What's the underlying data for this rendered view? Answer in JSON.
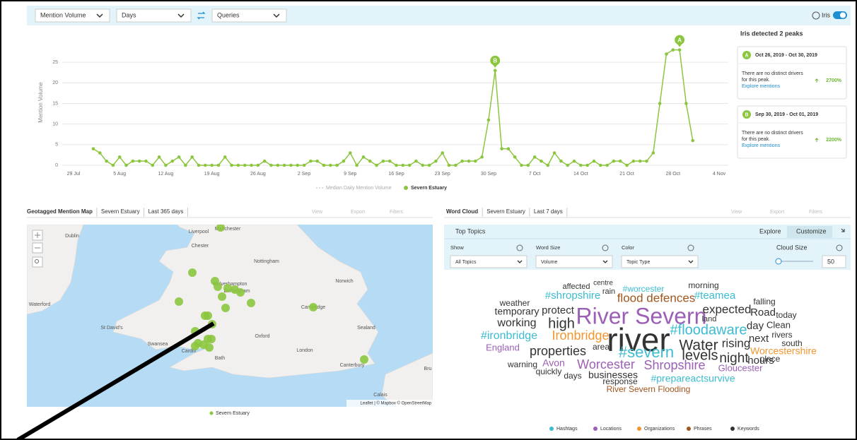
{
  "toolbar": {
    "metric": "Mention Volume",
    "interval": "Days",
    "group": "Queries",
    "iris": "Iris"
  },
  "chart_data": {
    "type": "line",
    "y_label": "Mention Volume",
    "categories": [
      "29 Jul",
      null,
      null,
      null,
      null,
      null,
      null,
      "5 Aug",
      null,
      null,
      null,
      null,
      null,
      null,
      "12 Aug",
      null,
      null,
      null,
      null,
      null,
      null,
      "19 Aug",
      null,
      null,
      null,
      null,
      null,
      null,
      "26 Aug",
      null,
      null,
      null,
      null,
      null,
      null,
      "2 Sep",
      null,
      null,
      null,
      null,
      null,
      null,
      "9 Sep",
      null,
      null,
      null,
      null,
      null,
      null,
      "16 Sep",
      null,
      null,
      null,
      null,
      null,
      null,
      "23 Sep",
      null,
      null,
      null,
      null,
      null,
      null,
      "30 Sep",
      null,
      null,
      null,
      null,
      null,
      null,
      "7 Oct",
      null,
      null,
      null,
      null,
      null,
      null,
      "14 Oct",
      null,
      null,
      null,
      null,
      null,
      null,
      "21 Oct",
      null,
      null,
      null,
      null,
      null,
      null,
      "28 Oct",
      null,
      null,
      null,
      null,
      null,
      null,
      "4 Nov"
    ],
    "series": [
      {
        "name": "Severn Estuary",
        "color": "#8cc63f",
        "values": [
          null,
          null,
          null,
          4,
          3,
          1,
          0,
          2,
          0,
          1,
          1,
          1,
          0,
          2,
          0,
          1,
          2,
          0,
          2,
          0,
          0,
          0,
          0,
          2,
          0,
          0,
          0,
          0,
          0,
          1,
          0,
          0,
          0,
          0,
          0,
          0,
          1,
          1,
          0,
          0,
          0,
          1,
          3,
          0,
          2,
          1,
          0,
          1,
          1,
          0,
          0,
          0,
          1,
          0,
          0,
          1,
          3,
          0,
          0,
          1,
          1,
          1,
          2,
          11,
          23,
          4,
          4,
          2,
          0,
          0,
          2,
          1,
          0,
          3,
          1,
          0,
          1,
          0,
          0,
          1,
          0,
          0,
          1,
          1,
          0,
          1,
          1,
          1,
          3,
          15,
          27,
          28,
          28,
          15,
          6,
          null,
          null,
          null,
          null
        ]
      }
    ],
    "reference_line": {
      "name": "Median Daily Mention Volume"
    },
    "ylim": [
      0,
      30
    ],
    "yticks": [
      0,
      5,
      10,
      15,
      20,
      25
    ],
    "grid": true
  },
  "peaks": {
    "title": "Iris detected 2 peaks",
    "items": [
      {
        "label": "A",
        "range": "Oct 26, 2019 - Oct 30, 2019",
        "text": "There are no distinct drivers",
        "text2": "for this peak.",
        "link": "Explore mentions",
        "change": "2700%"
      },
      {
        "label": "B",
        "range": "Sep 30, 2019 - Oct 01, 2019",
        "text": "There are no distinct drivers",
        "text2": "for this peak.",
        "link": "Explore mentions",
        "change": "2200%"
      }
    ]
  },
  "map_panel": {
    "tabs": [
      "Geotagged Mention Map",
      "Severn Estuary",
      "Last 365 days"
    ],
    "actions": [
      "View",
      "Export",
      "Filters"
    ],
    "cities": [
      "Manchester",
      "Liverpool",
      "Dublin",
      "Chester",
      "Nottingham",
      "Norwich",
      "Wolverhampton",
      "Birmingham",
      "Waterford",
      "Cambridge",
      "St David's",
      "Oxford",
      "Sealand",
      "Swansea",
      "Cardiff",
      "London",
      "Bath",
      "Canterbury",
      "Calais",
      "Bru"
    ],
    "legend": "Severn Estuary",
    "attribution": "Leaflet | © Mapbox © OpenStreetMap"
  },
  "cloud_panel": {
    "tabs": [
      "Word Cloud",
      "Severn Estuary",
      "Last 7 days"
    ],
    "actions": [
      "View",
      "Export",
      "Filters"
    ],
    "section": "Top Topics",
    "explore": "Explore",
    "customize": "Customize",
    "controls": [
      {
        "label": "Show",
        "value": "All Topics"
      },
      {
        "label": "Word Size",
        "value": "Volume"
      },
      {
        "label": "Color",
        "value": "Topic Type"
      }
    ],
    "cloud_size": {
      "label": "Cloud Size",
      "value": 50
    },
    "legend": [
      {
        "type": "Hashtags",
        "color": "#3bbcd0"
      },
      {
        "type": "Locations",
        "color": "#9b5fb5"
      },
      {
        "type": "Organizations",
        "color": "#f3962f"
      },
      {
        "type": "Phrases",
        "color": "#a0551e"
      },
      {
        "type": "Keywords",
        "color": "#333333"
      }
    ],
    "words": [
      {
        "text": "centre",
        "type": "Keywords"
      },
      {
        "text": "affected",
        "type": "Keywords"
      },
      {
        "text": "rain",
        "type": "Keywords"
      },
      {
        "text": "#worcester",
        "type": "Hashtags"
      },
      {
        "text": "morning",
        "type": "Keywords"
      },
      {
        "text": "#shropshire",
        "type": "Hashtags"
      },
      {
        "text": "flood defences",
        "type": "Phrases"
      },
      {
        "text": "#teamea",
        "type": "Hashtags"
      },
      {
        "text": "weather",
        "type": "Keywords"
      },
      {
        "text": "falling",
        "type": "Keywords"
      },
      {
        "text": "temporary",
        "type": "Keywords"
      },
      {
        "text": "protect",
        "type": "Keywords"
      },
      {
        "text": "River Severn",
        "type": "Locations"
      },
      {
        "text": "expected",
        "type": "Keywords"
      },
      {
        "text": "land",
        "type": "Keywords"
      },
      {
        "text": "Road",
        "type": "Keywords"
      },
      {
        "text": "today",
        "type": "Keywords"
      },
      {
        "text": "working",
        "type": "Keywords"
      },
      {
        "text": "high",
        "type": "Keywords"
      },
      {
        "text": "#floodaware",
        "type": "Hashtags"
      },
      {
        "text": "day",
        "type": "Keywords"
      },
      {
        "text": "Clean",
        "type": "Keywords"
      },
      {
        "text": "#ironbridge",
        "type": "Hashtags"
      },
      {
        "text": "Ironbridge",
        "type": "Organizations"
      },
      {
        "text": "river",
        "type": "Keywords"
      },
      {
        "text": "Water",
        "type": "Keywords"
      },
      {
        "text": "rising",
        "type": "Keywords"
      },
      {
        "text": "next",
        "type": "Keywords"
      },
      {
        "text": "rivers",
        "type": "Keywords"
      },
      {
        "text": "south",
        "type": "Keywords"
      },
      {
        "text": "England",
        "type": "Locations"
      },
      {
        "text": "area",
        "type": "Keywords"
      },
      {
        "text": "properties",
        "type": "Keywords"
      },
      {
        "text": "#severn",
        "type": "Hashtags"
      },
      {
        "text": "levels",
        "type": "Keywords"
      },
      {
        "text": "night",
        "type": "Keywords"
      },
      {
        "text": "hours",
        "type": "Keywords"
      },
      {
        "text": "place",
        "type": "Keywords"
      },
      {
        "text": "Worcestershire",
        "type": "Organizations"
      },
      {
        "text": "warning",
        "type": "Keywords"
      },
      {
        "text": "Avon",
        "type": "Locations"
      },
      {
        "text": "Worcester",
        "type": "Locations"
      },
      {
        "text": "Shropshire",
        "type": "Locations"
      },
      {
        "text": "Gloucester",
        "type": "Locations"
      },
      {
        "text": "quickly",
        "type": "Keywords"
      },
      {
        "text": "days",
        "type": "Keywords"
      },
      {
        "text": "businesses",
        "type": "Keywords"
      },
      {
        "text": "response",
        "type": "Keywords"
      },
      {
        "text": "#prepareactsurvive",
        "type": "Hashtags"
      },
      {
        "text": "River Severn Flooding",
        "type": "Phrases"
      }
    ]
  }
}
